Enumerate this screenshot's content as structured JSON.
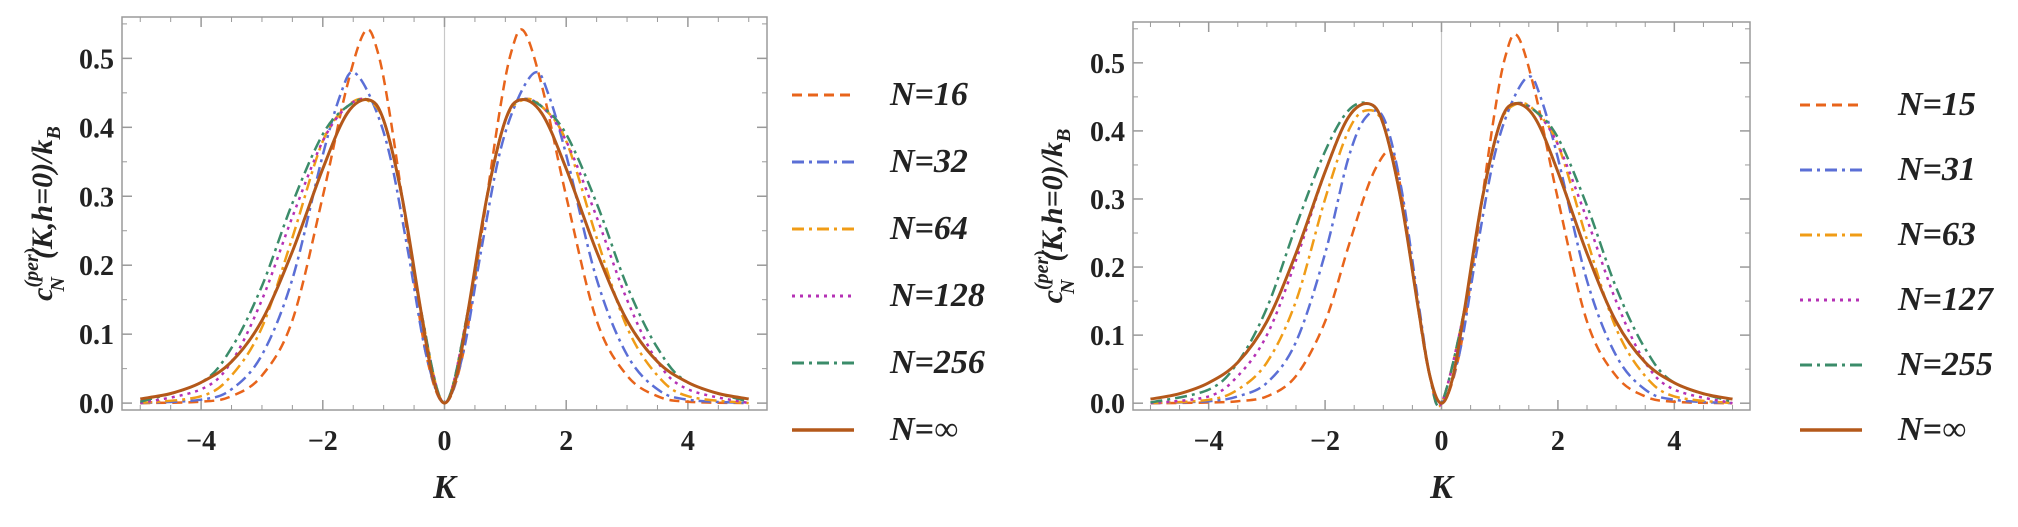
{
  "chart_data": [
    {
      "type": "line",
      "title": "",
      "xlabel": "K",
      "ylabel_parts": {
        "base": "c",
        "sup": "(per)",
        "sub": "N",
        "rest": "(K,h=0)/k",
        "rest_sub": "B"
      },
      "xlim": [
        -5.3,
        5.3
      ],
      "ylim": [
        -0.01,
        0.56
      ],
      "xticks": [
        -4,
        -2,
        0,
        2,
        4
      ],
      "xtick_labels": [
        "−4",
        "−2",
        "0",
        "2",
        "4"
      ],
      "yticks": [
        0.0,
        0.1,
        0.2,
        0.3,
        0.4,
        0.5
      ],
      "ytick_labels": [
        "0.0",
        "0.1",
        "0.2",
        "0.3",
        "0.4",
        "0.5"
      ],
      "grid": false,
      "legend_position": "right",
      "series": [
        {
          "name": "N=16",
          "color": "#e8641b",
          "dash": "dash",
          "width": 2.5,
          "x": [
            -5,
            -4,
            -3.5,
            -3,
            -2.5,
            -2,
            -1.6,
            -1.3,
            -1.1,
            -0.9,
            -0.6,
            -0.3,
            0,
            0.3,
            0.6,
            0.9,
            1.1,
            1.3,
            1.6,
            2,
            2.5,
            3,
            3.5,
            4,
            5
          ],
          "y": [
            0,
            0.002,
            0.01,
            0.04,
            0.12,
            0.3,
            0.46,
            0.54,
            0.51,
            0.42,
            0.24,
            0.07,
            0,
            0.07,
            0.24,
            0.42,
            0.51,
            0.54,
            0.46,
            0.3,
            0.12,
            0.04,
            0.01,
            0.002,
            0
          ]
        },
        {
          "name": "N=32",
          "color": "#5b6fd6",
          "dash": "dashdot",
          "width": 2.5,
          "x": [
            -5,
            -4,
            -3.5,
            -3,
            -2.5,
            -2,
            -1.7,
            -1.5,
            -1.2,
            -0.9,
            -0.6,
            -0.3,
            0,
            0.3,
            0.6,
            0.9,
            1.2,
            1.5,
            1.7,
            2,
            2.5,
            3,
            3.5,
            4,
            5
          ],
          "y": [
            0,
            0.005,
            0.02,
            0.07,
            0.18,
            0.36,
            0.45,
            0.48,
            0.44,
            0.36,
            0.22,
            0.07,
            0,
            0.07,
            0.22,
            0.36,
            0.44,
            0.48,
            0.45,
            0.36,
            0.18,
            0.07,
            0.02,
            0.005,
            0
          ]
        },
        {
          "name": "N=64",
          "color": "#f09c16",
          "dash": "dashdot",
          "width": 2.5,
          "x": [
            -5,
            -4,
            -3.5,
            -3,
            -2.5,
            -2,
            -1.6,
            -1.3,
            -1.0,
            -0.7,
            -0.4,
            0,
            0.4,
            0.7,
            1.0,
            1.3,
            1.6,
            2,
            2.5,
            3,
            3.5,
            4,
            5
          ],
          "y": [
            0,
            0.01,
            0.04,
            0.11,
            0.24,
            0.38,
            0.43,
            0.44,
            0.41,
            0.3,
            0.14,
            0,
            0.14,
            0.3,
            0.41,
            0.44,
            0.43,
            0.38,
            0.24,
            0.11,
            0.04,
            0.01,
            0
          ]
        },
        {
          "name": "N=128",
          "color": "#b531b5",
          "dash": "dot",
          "width": 2.5,
          "x": [
            -5,
            -4,
            -3.5,
            -3,
            -2.5,
            -2,
            -1.6,
            -1.25,
            -1.0,
            -0.7,
            -0.4,
            0,
            0.4,
            0.7,
            1.0,
            1.25,
            1.6,
            2,
            2.5,
            3,
            3.5,
            4,
            5
          ],
          "y": [
            0,
            0.02,
            0.06,
            0.15,
            0.27,
            0.38,
            0.43,
            0.44,
            0.41,
            0.3,
            0.14,
            0,
            0.14,
            0.3,
            0.41,
            0.44,
            0.43,
            0.38,
            0.27,
            0.15,
            0.06,
            0.02,
            0
          ]
        },
        {
          "name": "N=256",
          "color": "#3b8c6a",
          "dash": "dashdot",
          "width": 2.5,
          "x": [
            -5,
            -4,
            -3.5,
            -3,
            -2.5,
            -2,
            -1.6,
            -1.25,
            -1.0,
            -0.7,
            -0.4,
            0,
            0.4,
            0.7,
            1.0,
            1.25,
            1.6,
            2,
            2.5,
            3,
            3.5,
            4,
            5
          ],
          "y": [
            0.002,
            0.03,
            0.08,
            0.17,
            0.29,
            0.39,
            0.43,
            0.44,
            0.41,
            0.3,
            0.14,
            0,
            0.14,
            0.3,
            0.41,
            0.44,
            0.43,
            0.39,
            0.29,
            0.17,
            0.08,
            0.03,
            0.002
          ]
        },
        {
          "name": "N=∞",
          "color": "#b4581a",
          "dash": "solid",
          "width": 3,
          "x": [
            -5,
            -4.5,
            -4,
            -3.5,
            -3,
            -2.5,
            -2,
            -1.6,
            -1.25,
            -1.0,
            -0.7,
            -0.4,
            -0.2,
            0,
            0.2,
            0.4,
            0.7,
            1.0,
            1.25,
            1.6,
            2,
            2.5,
            3,
            3.5,
            4,
            4.5,
            5
          ],
          "y": [
            0.006,
            0.014,
            0.03,
            0.06,
            0.12,
            0.22,
            0.34,
            0.42,
            0.44,
            0.41,
            0.3,
            0.14,
            0.04,
            0,
            0.04,
            0.14,
            0.3,
            0.41,
            0.44,
            0.42,
            0.34,
            0.22,
            0.12,
            0.06,
            0.03,
            0.014,
            0.006
          ]
        }
      ]
    },
    {
      "type": "line",
      "title": "",
      "xlabel": "K",
      "ylabel_parts": {
        "base": "c",
        "sup": "(per)",
        "sub": "N",
        "rest": "(K,h=0)/k",
        "rest_sub": "B"
      },
      "xlim": [
        -5.3,
        5.3
      ],
      "ylim": [
        -0.01,
        0.56
      ],
      "xticks": [
        -4,
        -2,
        0,
        2,
        4
      ],
      "xtick_labels": [
        "−4",
        "−2",
        "0",
        "2",
        "4"
      ],
      "yticks": [
        0.0,
        0.1,
        0.2,
        0.3,
        0.4,
        0.5
      ],
      "ytick_labels": [
        "0.0",
        "0.1",
        "0.2",
        "0.3",
        "0.4",
        "0.5"
      ],
      "grid": false,
      "legend_position": "right",
      "series": [
        {
          "name": "N=15",
          "color": "#e8641b",
          "dash": "dash",
          "width": 2.5,
          "x": [
            -5,
            -4,
            -3.5,
            -3,
            -2.5,
            -2,
            -1.6,
            -1.3,
            -1.1,
            -0.9,
            -0.75,
            -0.5,
            -0.25,
            0,
            0.3,
            0.6,
            0.9,
            1.1,
            1.3,
            1.6,
            2,
            2.5,
            3,
            3.5,
            4,
            5
          ],
          "y": [
            0,
            0.001,
            0.003,
            0.01,
            0.04,
            0.12,
            0.23,
            0.31,
            0.35,
            0.37,
            0.34,
            0.2,
            0.06,
            0,
            0.07,
            0.24,
            0.42,
            0.51,
            0.54,
            0.46,
            0.3,
            0.12,
            0.04,
            0.01,
            0.002,
            0
          ]
        },
        {
          "name": "N=31",
          "color": "#5b6fd6",
          "dash": "dashdot",
          "width": 2.5,
          "x": [
            -5,
            -4,
            -3.5,
            -3,
            -2.5,
            -2,
            -1.6,
            -1.3,
            -1.0,
            -0.7,
            -0.4,
            -0.2,
            0,
            0.3,
            0.6,
            0.9,
            1.2,
            1.5,
            1.7,
            2,
            2.5,
            3,
            3.5,
            4,
            5
          ],
          "y": [
            0,
            0.003,
            0.01,
            0.03,
            0.09,
            0.22,
            0.36,
            0.42,
            0.42,
            0.32,
            0.15,
            0.04,
            0,
            0.07,
            0.22,
            0.36,
            0.44,
            0.48,
            0.45,
            0.36,
            0.18,
            0.07,
            0.02,
            0.005,
            0
          ]
        },
        {
          "name": "N=63",
          "color": "#f09c16",
          "dash": "dashdot",
          "width": 2.5,
          "x": [
            -5,
            -4,
            -3.5,
            -3,
            -2.5,
            -2,
            -1.6,
            -1.3,
            -1.0,
            -0.7,
            -0.4,
            -0.2,
            0,
            0.4,
            0.7,
            1.0,
            1.3,
            1.6,
            2,
            2.5,
            3,
            3.5,
            4,
            5
          ],
          "y": [
            0,
            0.005,
            0.02,
            0.06,
            0.15,
            0.3,
            0.4,
            0.43,
            0.41,
            0.3,
            0.14,
            0.04,
            0,
            0.14,
            0.3,
            0.41,
            0.44,
            0.43,
            0.38,
            0.24,
            0.11,
            0.04,
            0.01,
            0
          ]
        },
        {
          "name": "N=127",
          "color": "#b531b5",
          "dash": "dot",
          "width": 2.5,
          "x": [
            -5,
            -4,
            -3.5,
            -3,
            -2.5,
            -2,
            -1.6,
            -1.25,
            -1.0,
            -0.7,
            -0.4,
            -0.2,
            0,
            0.4,
            0.7,
            1.0,
            1.25,
            1.6,
            2,
            2.5,
            3,
            3.5,
            4,
            5
          ],
          "y": [
            0,
            0.01,
            0.04,
            0.1,
            0.21,
            0.34,
            0.42,
            0.44,
            0.41,
            0.3,
            0.14,
            0.04,
            0,
            0.14,
            0.3,
            0.41,
            0.44,
            0.43,
            0.38,
            0.27,
            0.15,
            0.06,
            0.02,
            0
          ]
        },
        {
          "name": "N=255",
          "color": "#3b8c6a",
          "dash": "dashdot",
          "width": 2.5,
          "x": [
            -5,
            -4,
            -3.5,
            -3,
            -2.5,
            -2,
            -1.6,
            -1.25,
            -1.0,
            -0.7,
            -0.4,
            -0.2,
            0,
            0.4,
            0.7,
            1.0,
            1.25,
            1.6,
            2,
            2.5,
            3,
            3.5,
            4,
            5
          ],
          "y": [
            0.001,
            0.02,
            0.06,
            0.14,
            0.26,
            0.37,
            0.43,
            0.44,
            0.41,
            0.3,
            0.14,
            0.04,
            0,
            0.14,
            0.3,
            0.41,
            0.44,
            0.43,
            0.39,
            0.29,
            0.17,
            0.08,
            0.03,
            0.002
          ]
        },
        {
          "name": "N=∞",
          "color": "#b4581a",
          "dash": "solid",
          "width": 3,
          "x": [
            -5,
            -4.5,
            -4,
            -3.5,
            -3,
            -2.5,
            -2,
            -1.6,
            -1.25,
            -1.0,
            -0.7,
            -0.4,
            -0.2,
            0,
            0.2,
            0.4,
            0.7,
            1.0,
            1.25,
            1.6,
            2,
            2.5,
            3,
            3.5,
            4,
            4.5,
            5
          ],
          "y": [
            0.006,
            0.014,
            0.03,
            0.06,
            0.12,
            0.22,
            0.34,
            0.42,
            0.44,
            0.41,
            0.3,
            0.14,
            0.04,
            0,
            0.04,
            0.14,
            0.3,
            0.41,
            0.44,
            0.42,
            0.34,
            0.22,
            0.12,
            0.06,
            0.03,
            0.014,
            0.006
          ]
        }
      ]
    }
  ]
}
